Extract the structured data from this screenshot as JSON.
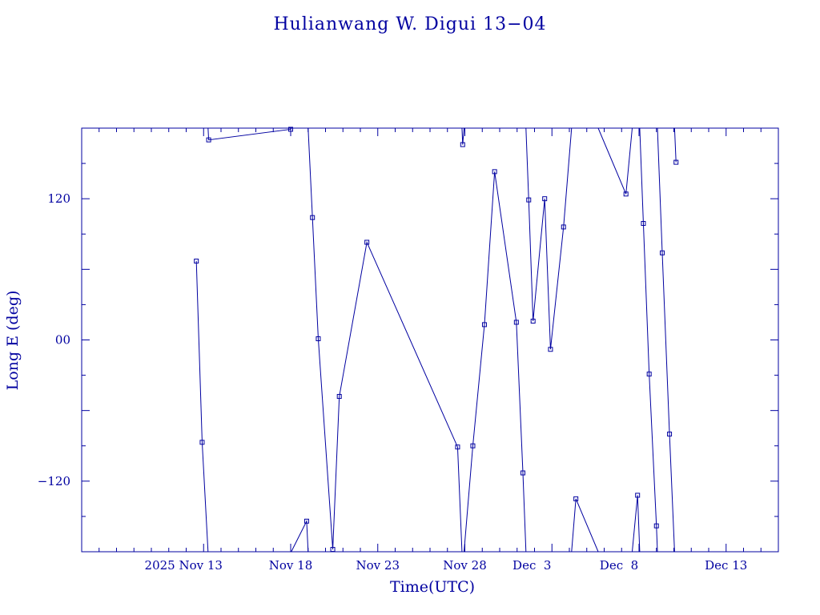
{
  "chart_data": {
    "type": "line",
    "title": "Hulianwang W. Digui 13−04",
    "xlabel": "Time(UTC)",
    "ylabel": "Long E (deg)",
    "x_range": [
      "2025-11-06",
      "2025-12-16"
    ],
    "ylim": [
      -180,
      180
    ],
    "x_tick_labels": [
      {
        "date": "2025-11-13",
        "label": "2025 Nov 13"
      },
      {
        "date": "2025-11-18",
        "label": "Nov 18"
      },
      {
        "date": "2025-11-23",
        "label": "Nov 23"
      },
      {
        "date": "2025-11-28",
        "label": "Nov 28"
      },
      {
        "date": "2025-12-03",
        "label": "Dec  3"
      },
      {
        "date": "2025-12-08",
        "label": "Dec  8"
      },
      {
        "date": "2025-12-13",
        "label": "Dec 13"
      }
    ],
    "y_tick_labels": [
      {
        "value": -120,
        "label": "−120"
      },
      {
        "value": 0,
        "label": "00"
      },
      {
        "value": 120,
        "label": "120"
      }
    ],
    "series": [
      {
        "points": [
          [
            "2025-11-12T14:00",
            67
          ],
          [
            "2025-11-12T22:00",
            -87
          ],
          [
            "2025-11-13T07:00",
            170
          ],
          [
            "2025-11-18T00:00",
            179
          ],
          [
            "2025-11-18T22:00",
            -154
          ],
          [
            "2025-11-19T06:00",
            104
          ],
          [
            "2025-11-19T14:00",
            1
          ],
          [
            "2025-11-20T10:00",
            -178
          ],
          [
            "2025-11-20T19:00",
            -48
          ],
          [
            "2025-11-22T09:00",
            83
          ],
          [
            "2025-11-27T14:00",
            -91
          ],
          [
            "2025-11-27T21:00",
            166
          ],
          [
            "2025-11-28T11:00",
            -90
          ],
          [
            "2025-11-29T03:00",
            13
          ],
          [
            "2025-11-29T17:00",
            143
          ],
          [
            "2025-11-30T23:00",
            15
          ],
          [
            "2025-12-01T08:00",
            -113
          ],
          [
            "2025-12-01T16:00",
            119
          ],
          [
            "2025-12-01T22:00",
            16
          ],
          [
            "2025-12-02T14:00",
            120
          ],
          [
            "2025-12-02T22:00",
            -8
          ],
          [
            "2025-12-03T16:00",
            96
          ],
          [
            "2025-12-04T09:00",
            -135
          ],
          [
            "2025-12-07T06:00",
            124
          ],
          [
            "2025-12-07T22:00",
            -132
          ],
          [
            "2025-12-08T06:00",
            99
          ],
          [
            "2025-12-08T14:00",
            -29
          ],
          [
            "2025-12-09T00:00",
            -158
          ],
          [
            "2025-12-09T08:00",
            74
          ],
          [
            "2025-12-09T18:00",
            -80
          ],
          [
            "2025-12-10T03:00",
            151
          ]
        ]
      }
    ],
    "grid": false,
    "legend": "none"
  }
}
